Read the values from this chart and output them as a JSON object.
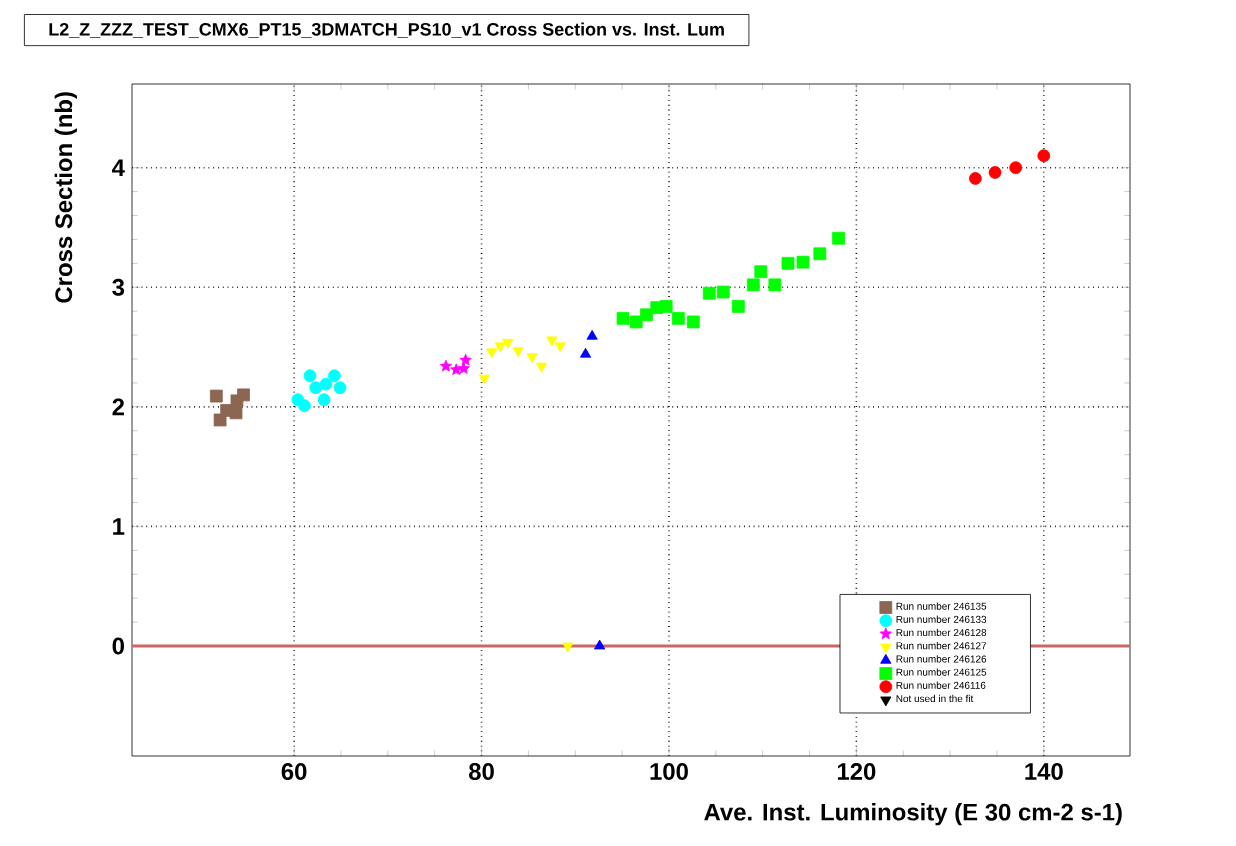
{
  "chart_data": {
    "type": "scatter",
    "title": "L2_Z_ZZZ_TEST_CMX6_PT15_3DMATCH_PS10_v1 Cross Section vs. Inst. Lum",
    "xlabel": "Ave. Inst. Luminosity (E 30 cm-2 s-1)",
    "ylabel": "Cross Section (nb)",
    "xlim": [
      42.7,
      149.2
    ],
    "ylim": [
      -0.92,
      4.7
    ],
    "xticks": [
      60,
      80,
      100,
      120,
      140
    ],
    "yticks": [
      0,
      1,
      2,
      3,
      4
    ],
    "grid": true,
    "legend": "bottom right",
    "ref_lines": [
      {
        "axis": "y",
        "value": 0,
        "color": "#cc6666"
      }
    ],
    "series": [
      {
        "name": "Run number 246135",
        "color": "#8b6651",
        "marker": "square",
        "x": [
          51.7,
          52.1,
          52.8,
          53.3,
          53.8,
          54.6,
          53.9
        ],
        "values": [
          2.09,
          1.89,
          1.97,
          null,
          1.95,
          2.1,
          2.05
        ]
      },
      {
        "name": "Run number 246133",
        "color": "#00ffff",
        "marker": "circle",
        "x": [
          61.7,
          64.3,
          64.9,
          62.3,
          60.4,
          61.1,
          63.2,
          63.4
        ],
        "values": [
          2.26,
          2.26,
          2.16,
          2.16,
          2.06,
          2.01,
          2.06,
          2.19
        ]
      },
      {
        "name": "Run number 246128",
        "color": "#ff00ff",
        "marker": "star",
        "x": [
          76.2,
          77.3,
          78.3,
          78.1
        ],
        "values": [
          2.34,
          2.31,
          2.39,
          2.32
        ]
      },
      {
        "name": "Run number 246127",
        "color": "#ffff00",
        "marker": "triangle-down",
        "x": [
          80.3,
          81.1,
          82.0,
          82.8,
          83.9,
          85.4,
          86.4,
          87.5,
          88.4,
          89.2
        ],
        "values": [
          2.24,
          2.46,
          2.51,
          2.54,
          2.47,
          2.42,
          2.34,
          2.56,
          2.51,
          0
        ]
      },
      {
        "name": "Run number 246126",
        "color": "#0000ff",
        "marker": "triangle",
        "x": [
          91.8,
          91.1,
          92.6
        ],
        "values": [
          2.59,
          2.44,
          0
        ]
      },
      {
        "name": "Run number 246125",
        "color": "#00ff00",
        "marker": "square",
        "x": [
          95.1,
          96.5,
          97.6,
          98.7,
          99.7,
          101.0,
          102.6,
          104.3,
          105.8,
          107.4,
          109.0,
          109.8,
          111.3,
          112.7,
          114.3,
          116.1,
          118.1
        ],
        "values": [
          2.74,
          2.71,
          2.77,
          2.83,
          2.84,
          2.74,
          2.71,
          2.95,
          2.96,
          2.84,
          3.02,
          3.13,
          3.02,
          3.2,
          3.21,
          3.28,
          3.41
        ]
      },
      {
        "name": "Run number 246116",
        "color": "#ff0000",
        "marker": "circle",
        "x": [
          132.7,
          134.8,
          137.0,
          140.0
        ],
        "values": [
          3.91,
          3.96,
          4.0,
          4.1
        ]
      },
      {
        "name": "Not used in the fit",
        "color": "#000000",
        "marker": "triangle-down"
      }
    ]
  }
}
